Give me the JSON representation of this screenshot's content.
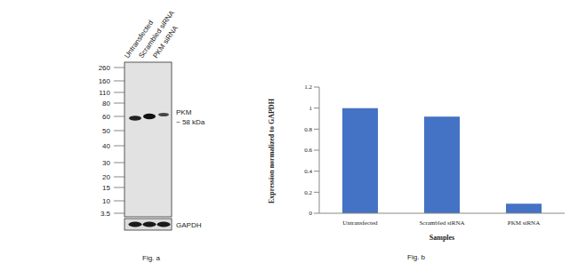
{
  "chart_data": {
    "type": "bar",
    "categories": [
      "Untransfected",
      "Scrambled siRNA",
      "PKM siRNA"
    ],
    "values": [
      1.0,
      0.92,
      0.09
    ],
    "color": "#4472c4",
    "ylim": [
      0,
      1.2
    ],
    "yticks": [
      0,
      0.2,
      0.4,
      0.6,
      0.8,
      1,
      1.2
    ],
    "grid": false,
    "y_label": "Expression normalized to GAPDH",
    "x_label": "Samples"
  },
  "blot": {
    "lanes": [
      "Untransfected",
      "Scrambled siRNA",
      "PKM siRNA"
    ],
    "mw_markers": [
      260,
      160,
      110,
      80,
      60,
      50,
      40,
      30,
      20,
      15,
      10,
      3.5
    ],
    "band_label": [
      "PKM",
      "~ 58 kDa"
    ],
    "loading_control": "GAPDH"
  },
  "figure_labels": [
    "Fig. a",
    "Fig. b"
  ]
}
